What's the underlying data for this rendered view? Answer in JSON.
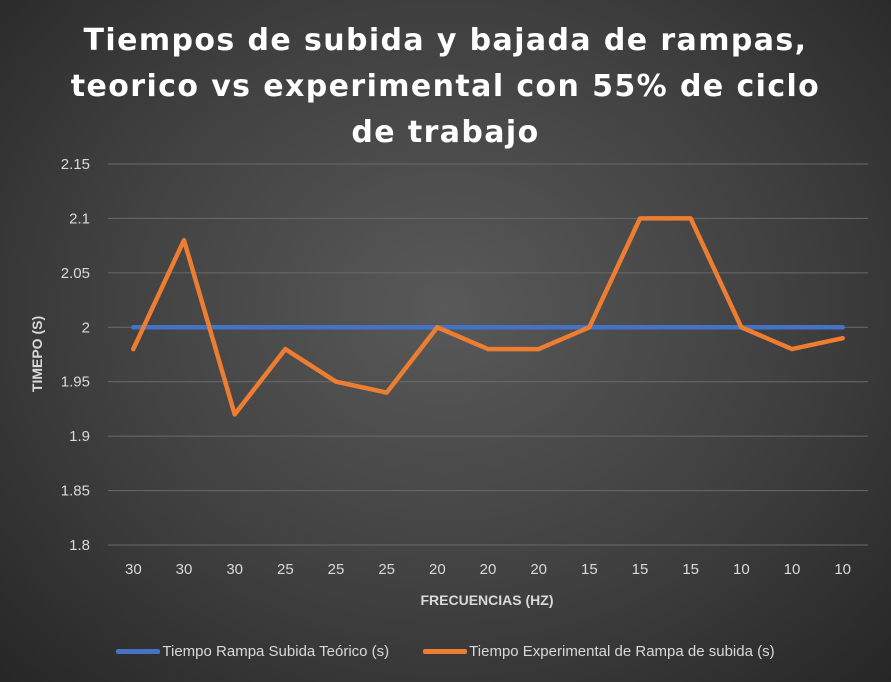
{
  "chart_data": {
    "type": "line",
    "title": "Tiempos de subida y bajada de rampas, teorico vs experimental con 55% de ciclo de trabajo",
    "xlabel": "FRECUENCIAS (HZ)",
    "ylabel": "TIMEPO (S)",
    "ylim": [
      1.8,
      2.15
    ],
    "yticks": [
      "1.8",
      "1.85",
      "1.9",
      "1.95",
      "2",
      "2.05",
      "2.1",
      "2.15"
    ],
    "categories": [
      "30",
      "30",
      "30",
      "25",
      "25",
      "25",
      "20",
      "20",
      "20",
      "15",
      "15",
      "15",
      "10",
      "10",
      "10"
    ],
    "grid": true,
    "legend_position": "bottom",
    "series": [
      {
        "name": "Tiempo Rampa Subida Teórico (s)",
        "color": "#4472c4",
        "values": [
          2,
          2,
          2,
          2,
          2,
          2,
          2,
          2,
          2,
          2,
          2,
          2,
          2,
          2,
          2
        ]
      },
      {
        "name": "Tiempo Experimental de Rampa de subida (s)",
        "color": "#ed7d31",
        "values": [
          1.98,
          2.08,
          1.92,
          1.98,
          1.95,
          1.94,
          2,
          1.98,
          1.98,
          2,
          2.1,
          2.1,
          2,
          1.98,
          1.99
        ]
      }
    ]
  }
}
